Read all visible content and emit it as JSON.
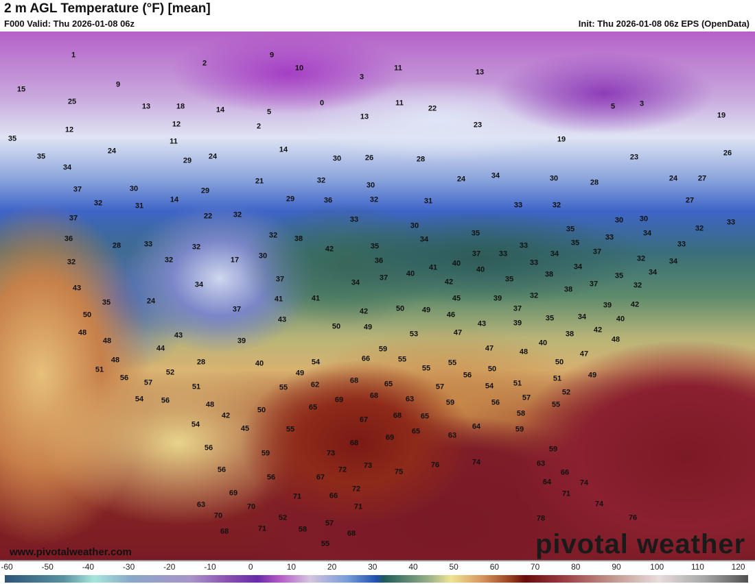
{
  "header": {
    "title": "2 m AGL Temperature (°F) [mean]",
    "valid": "F000 Valid: Thu 2026-01-08 06z",
    "init": "Init: Thu 2026-01-08 06z EPS (OpenData)"
  },
  "footer": {
    "url": "www.pivotalweather.com",
    "logo": "pivotal weather"
  },
  "colorbar": {
    "ticks": [
      "-60",
      "-50",
      "-40",
      "-30",
      "-20",
      "-10",
      "0",
      "10",
      "20",
      "30",
      "40",
      "50",
      "60",
      "70",
      "80",
      "90",
      "100",
      "110",
      "120"
    ]
  },
  "map_labels": [
    "1",
    "9",
    "2",
    "10",
    "11",
    "13",
    "3",
    "15",
    "9",
    "0",
    "11",
    "25",
    "13",
    "18",
    "14",
    "5",
    "22",
    "5",
    "3",
    "12",
    "12",
    "2",
    "13",
    "23",
    "19",
    "11",
    "24",
    "14",
    "19",
    "35",
    "35",
    "29",
    "24",
    "30",
    "26",
    "28",
    "23",
    "26",
    "34",
    "37",
    "21",
    "32",
    "30",
    "24",
    "34",
    "30",
    "28",
    "24",
    "27",
    "30",
    "29",
    "29",
    "36",
    "32",
    "31",
    "33",
    "32",
    "27",
    "32",
    "31",
    "14",
    "22",
    "32",
    "33",
    "30",
    "30",
    "30",
    "32",
    "33",
    "37",
    "38",
    "32",
    "35",
    "35",
    "34",
    "36",
    "28",
    "33",
    "32",
    "42",
    "35",
    "34",
    "37",
    "33",
    "33",
    "35",
    "33",
    "37",
    "33",
    "32",
    "32",
    "17",
    "30",
    "36",
    "41",
    "40",
    "40",
    "33",
    "34",
    "34",
    "32",
    "34",
    "43",
    "37",
    "34",
    "37",
    "40",
    "42",
    "35",
    "38",
    "37",
    "35",
    "34",
    "32",
    "35",
    "24",
    "34",
    "41",
    "41",
    "45",
    "39",
    "32",
    "38",
    "42",
    "50",
    "37",
    "43",
    "42",
    "50",
    "49",
    "46",
    "37",
    "39",
    "40",
    "48",
    "50",
    "49",
    "53",
    "43",
    "39",
    "35",
    "34",
    "42",
    "48",
    "43",
    "39",
    "47",
    "38",
    "48",
    "40",
    "44",
    "59",
    "47",
    "48",
    "47",
    "48",
    "28",
    "40",
    "54",
    "66",
    "55",
    "55",
    "50",
    "51",
    "52",
    "49",
    "55",
    "56",
    "50",
    "51",
    "51",
    "49",
    "56",
    "57",
    "51",
    "55",
    "62",
    "68",
    "65",
    "57",
    "54",
    "52",
    "54",
    "56",
    "48",
    "50",
    "65",
    "69",
    "68",
    "63",
    "59",
    "56",
    "57",
    "55",
    "42",
    "54",
    "67",
    "68",
    "65",
    "58",
    "45",
    "55",
    "69",
    "65",
    "63",
    "64",
    "59",
    "56",
    "59",
    "68",
    "73",
    "59",
    "56",
    "72",
    "73",
    "75",
    "76",
    "74",
    "63",
    "66",
    "56",
    "67",
    "74",
    "64",
    "69",
    "71",
    "66",
    "72",
    "71",
    "74",
    "63",
    "70",
    "71",
    "70",
    "52",
    "57",
    "76",
    "68",
    "71",
    "58",
    "68",
    "78",
    "55"
  ]
}
